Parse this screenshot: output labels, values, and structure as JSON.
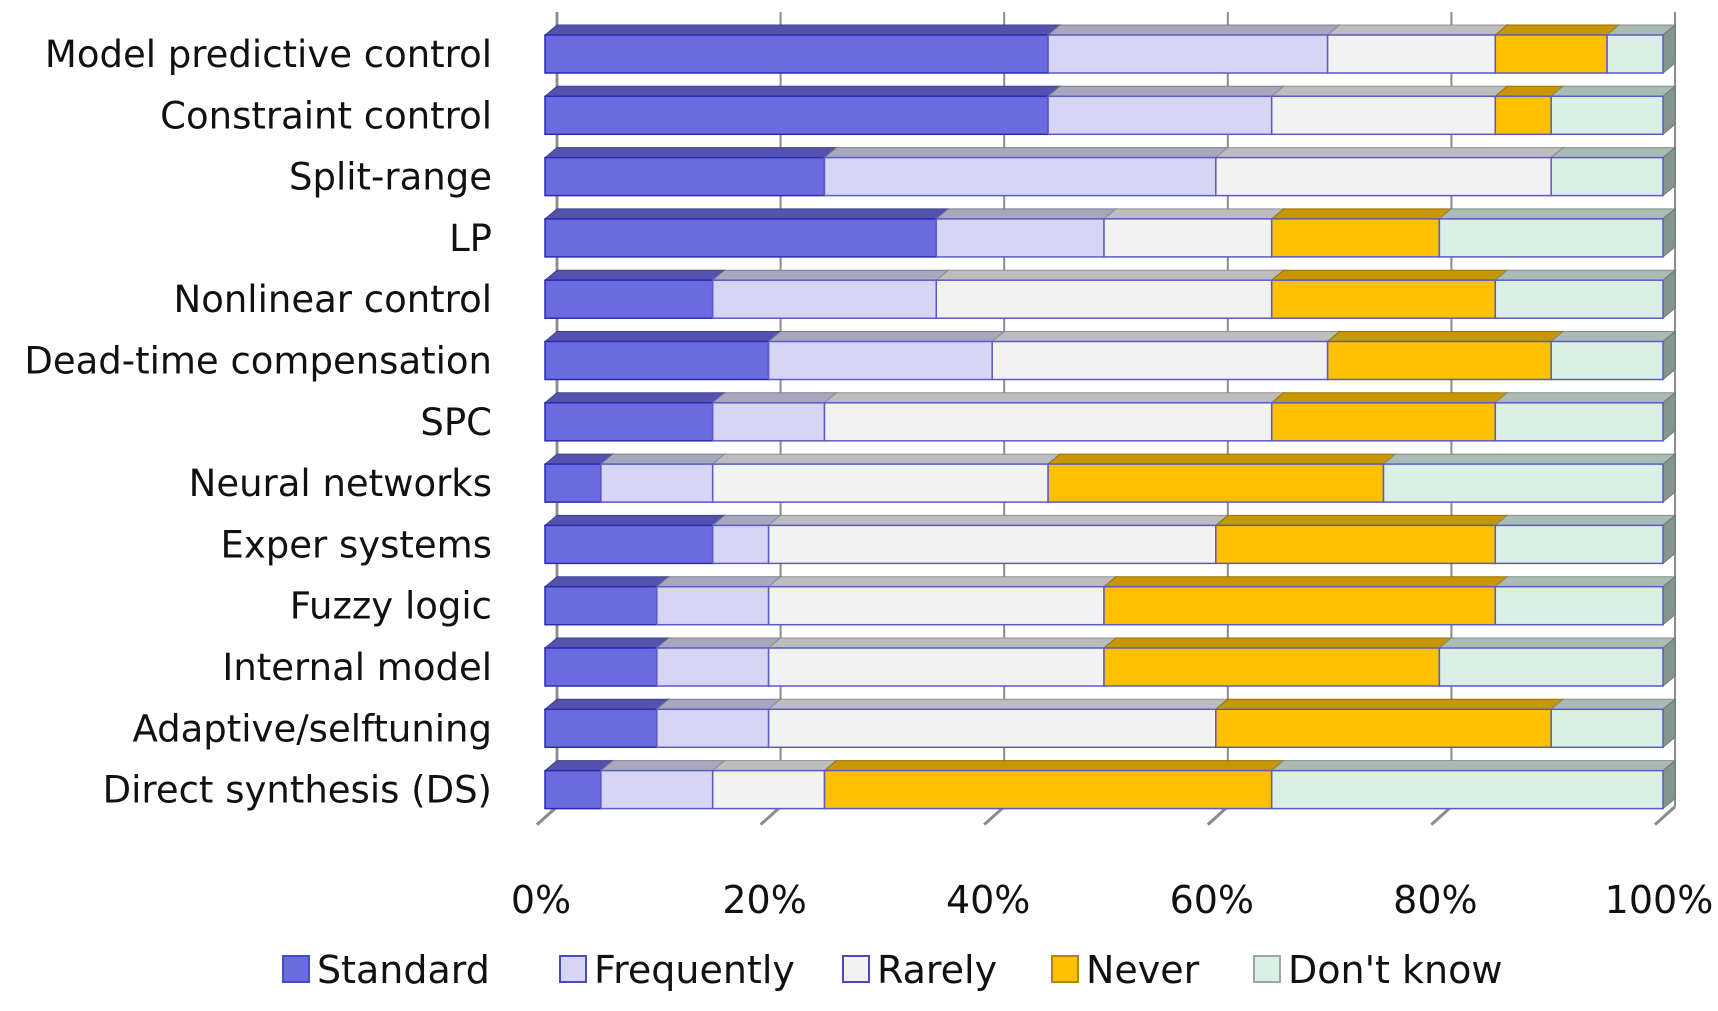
{
  "chart_data": {
    "type": "bar",
    "orientation": "horizontal",
    "stacked": "percent",
    "three_d": true,
    "title": "",
    "xlabel": "",
    "ylabel": "",
    "xlim": [
      0,
      100
    ],
    "x_ticks": [
      "0%",
      "20%",
      "40%",
      "60%",
      "80%",
      "100%"
    ],
    "grid": "vertical",
    "legend_position": "bottom",
    "categories": [
      "Model predictive control",
      "Constraint control",
      "Split-range",
      "LP",
      "Nonlinear control",
      "Dead-time compensation",
      "SPC",
      "Neural networks",
      "Exper systems",
      "Fuzzy logic",
      "Internal model",
      "Adaptive/selftuning",
      "Direct synthesis (DS)"
    ],
    "series": [
      {
        "name": "Standard",
        "color": "#6b6be0",
        "values": [
          45,
          45,
          25,
          35,
          15,
          20,
          15,
          5,
          15,
          10,
          10,
          10,
          5
        ]
      },
      {
        "name": "Frequently",
        "color": "#d6d6f4",
        "values": [
          25,
          20,
          35,
          15,
          20,
          20,
          10,
          10,
          5,
          10,
          10,
          10,
          10
        ]
      },
      {
        "name": "Rarely",
        "color": "#f2f2f2",
        "values": [
          15,
          20,
          30,
          15,
          30,
          30,
          40,
          30,
          40,
          30,
          30,
          40,
          10
        ]
      },
      {
        "name": "Never",
        "color": "#ffc000",
        "values": [
          10,
          5,
          0,
          15,
          20,
          20,
          20,
          30,
          25,
          35,
          30,
          30,
          40
        ]
      },
      {
        "name": "Don't know",
        "color": "#daf0e6",
        "values": [
          5,
          10,
          10,
          20,
          15,
          10,
          15,
          25,
          15,
          15,
          20,
          10,
          35
        ]
      }
    ]
  }
}
